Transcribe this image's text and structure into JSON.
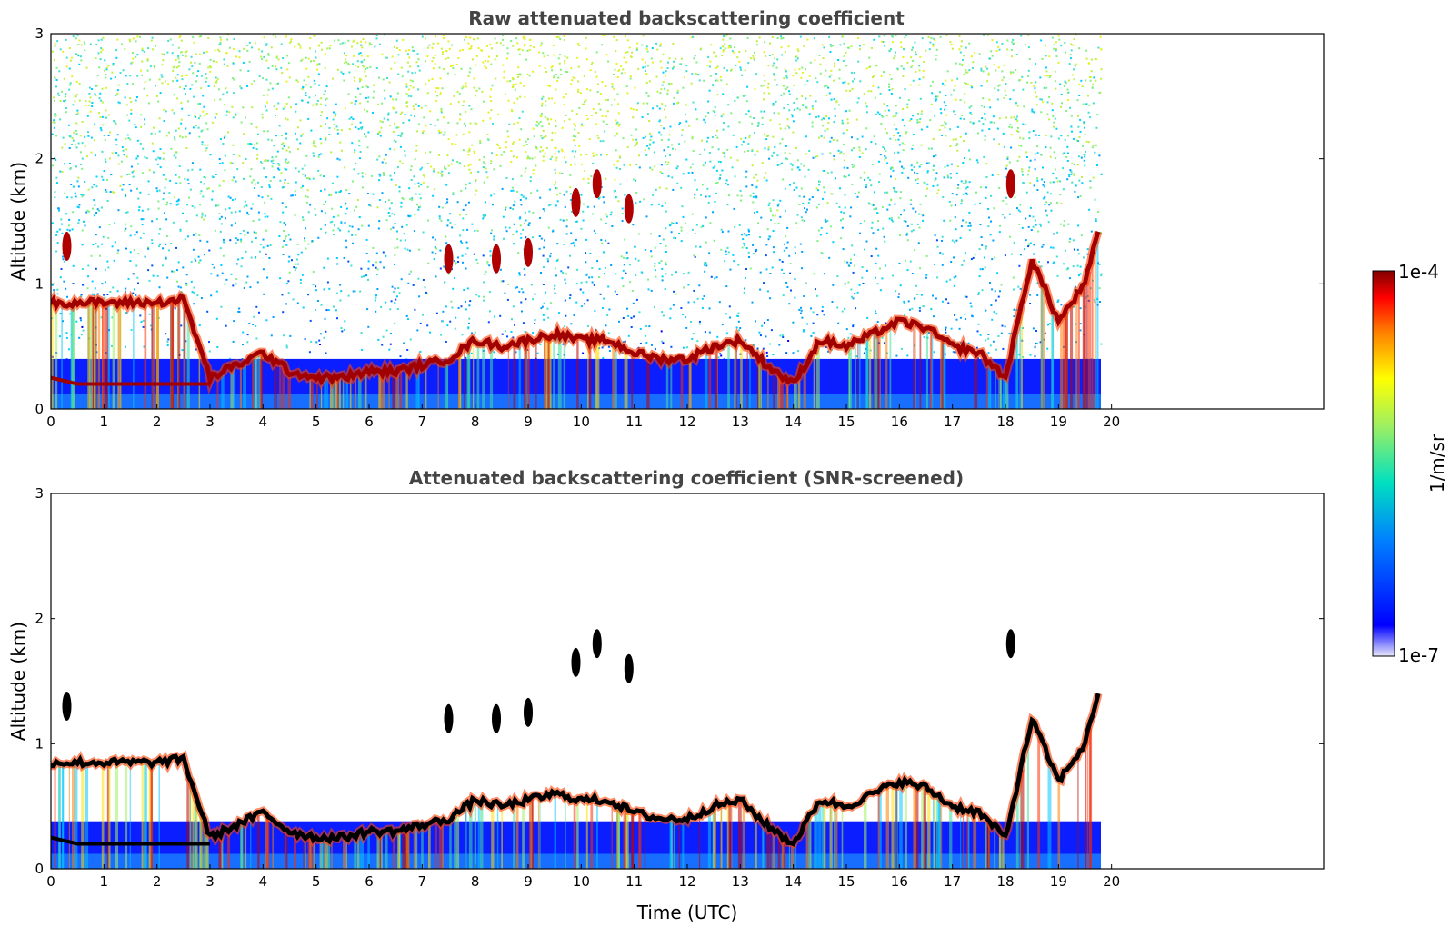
{
  "chart_data": [
    {
      "type": "heatmap",
      "title": "Raw attenuated backscattering coefficient",
      "xlabel": "",
      "ylabel": "Altitude (km)",
      "xlim": [
        0,
        24
      ],
      "ylim": [
        0,
        3
      ],
      "x_ticks": [
        "0",
        "1",
        "2",
        "3",
        "4",
        "5",
        "6",
        "7",
        "8",
        "9",
        "10",
        "11",
        "12",
        "13",
        "14",
        "15",
        "16",
        "17",
        "18",
        "19",
        "20"
      ],
      "y_ticks": [
        "0",
        "1",
        "2",
        "3"
      ],
      "data_end_hour": 19.8,
      "screened": false,
      "layer_altitude_km": {
        "hours": [
          0,
          0.5,
          1,
          1.5,
          2,
          2.5,
          3,
          3.5,
          4,
          4.5,
          5,
          5.5,
          6,
          6.5,
          7,
          7.5,
          8,
          8.5,
          9,
          9.5,
          10,
          10.5,
          11,
          11.5,
          12,
          12.5,
          13,
          13.5,
          14,
          14.5,
          15,
          15.5,
          16,
          16.5,
          17,
          17.5,
          18,
          18.5,
          19,
          19.5,
          19.8
        ],
        "altitude": [
          0.85,
          0.85,
          0.85,
          0.85,
          0.85,
          0.88,
          0.25,
          0.35,
          0.45,
          0.3,
          0.25,
          0.25,
          0.3,
          0.3,
          0.35,
          0.4,
          0.55,
          0.5,
          0.55,
          0.6,
          0.55,
          0.55,
          0.45,
          0.4,
          0.4,
          0.5,
          0.55,
          0.35,
          0.2,
          0.55,
          0.5,
          0.6,
          0.7,
          0.65,
          0.5,
          0.45,
          0.25,
          1.2,
          0.7,
          1.0,
          1.5
        ]
      },
      "lower_layer_altitude_km": {
        "hours": [
          0,
          0.5,
          1,
          1.5,
          2,
          2.5,
          3
        ],
        "altitude": [
          0.25,
          0.2,
          0.2,
          0.2,
          0.2,
          0.2,
          0.2
        ]
      },
      "elevated_clouds": [
        {
          "hour": 10.3,
          "altitude_km": 1.8
        },
        {
          "hour": 9.9,
          "altitude_km": 1.65
        },
        {
          "hour": 10.9,
          "altitude_km": 1.6
        },
        {
          "hour": 18.1,
          "altitude_km": 1.8
        },
        {
          "hour": 9.0,
          "altitude_km": 1.25
        },
        {
          "hour": 7.5,
          "altitude_km": 1.2
        },
        {
          "hour": 8.4,
          "altitude_km": 1.2
        },
        {
          "hour": 0.3,
          "altitude_km": 1.3
        }
      ]
    },
    {
      "type": "heatmap",
      "title": "Attenuated backscattering coefficient (SNR-screened)",
      "xlabel": "Time (UTC)",
      "ylabel": "Altitude (km)",
      "xlim": [
        0,
        24
      ],
      "ylim": [
        0,
        3
      ],
      "x_ticks": [
        "0",
        "1",
        "2",
        "3",
        "4",
        "5",
        "6",
        "7",
        "8",
        "9",
        "10",
        "11",
        "12",
        "13",
        "14",
        "15",
        "16",
        "17",
        "18",
        "19",
        "20"
      ],
      "y_ticks": [
        "0",
        "1",
        "2",
        "3"
      ],
      "data_end_hour": 19.8,
      "screened": true
    }
  ],
  "colorbar": {
    "max_label": "1e-4",
    "min_label": "1e-7",
    "unit_label": "1/m/sr",
    "colors": [
      "#e6e6fa",
      "#0000ff",
      "#00a0ff",
      "#00e0c0",
      "#a0f060",
      "#ffff00",
      "#ff8000",
      "#ff0000",
      "#800000"
    ]
  }
}
